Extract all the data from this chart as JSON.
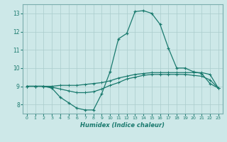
{
  "title": "",
  "xlabel": "Humidex (Indice chaleur)",
  "bg_color": "#cde8e8",
  "grid_color": "#aacccc",
  "line_color": "#1a7a6e",
  "spine_color": "#7aadad",
  "xlim": [
    -0.5,
    23.5
  ],
  "ylim": [
    7.5,
    13.5
  ],
  "yticks": [
    8,
    9,
    10,
    11,
    12,
    13
  ],
  "xticks": [
    0,
    1,
    2,
    3,
    4,
    5,
    6,
    7,
    8,
    9,
    10,
    11,
    12,
    13,
    14,
    15,
    16,
    17,
    18,
    19,
    20,
    21,
    22,
    23
  ],
  "line1_x": [
    0,
    1,
    2,
    3,
    4,
    5,
    6,
    7,
    8,
    9,
    10,
    11,
    12,
    13,
    14,
    15,
    16,
    17,
    18,
    19,
    20,
    21,
    22,
    23
  ],
  "line1_y": [
    9.0,
    9.0,
    9.0,
    8.9,
    8.4,
    8.1,
    7.8,
    7.7,
    7.7,
    8.6,
    9.8,
    11.6,
    11.9,
    13.1,
    13.15,
    13.0,
    12.4,
    11.1,
    10.0,
    10.0,
    9.8,
    9.7,
    9.15,
    8.9
  ],
  "line2_x": [
    0,
    1,
    2,
    3,
    4,
    5,
    6,
    7,
    8,
    9,
    10,
    11,
    12,
    13,
    14,
    15,
    16,
    17,
    18,
    19,
    20,
    21,
    22,
    23
  ],
  "line2_y": [
    9.0,
    9.0,
    9.0,
    9.0,
    9.05,
    9.05,
    9.05,
    9.1,
    9.15,
    9.2,
    9.3,
    9.45,
    9.55,
    9.65,
    9.7,
    9.75,
    9.75,
    9.75,
    9.75,
    9.75,
    9.75,
    9.75,
    9.65,
    8.9
  ],
  "line3_x": [
    0,
    1,
    2,
    3,
    4,
    5,
    6,
    7,
    8,
    9,
    10,
    11,
    12,
    13,
    14,
    15,
    16,
    17,
    18,
    19,
    20,
    21,
    22,
    23
  ],
  "line3_y": [
    9.0,
    9.0,
    9.0,
    8.95,
    8.85,
    8.75,
    8.65,
    8.65,
    8.7,
    8.85,
    9.05,
    9.2,
    9.4,
    9.5,
    9.6,
    9.65,
    9.65,
    9.65,
    9.65,
    9.65,
    9.6,
    9.55,
    9.35,
    8.9
  ]
}
